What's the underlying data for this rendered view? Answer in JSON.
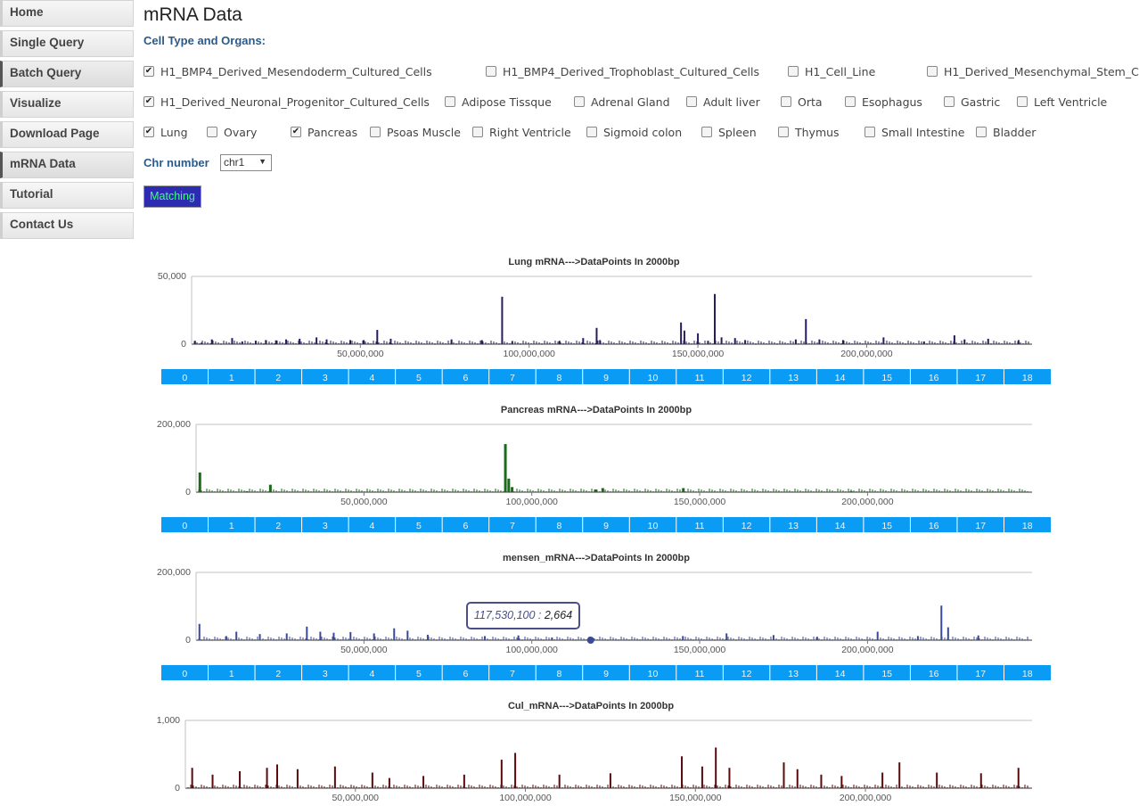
{
  "nav": {
    "items": [
      {
        "label": "Home",
        "active": false
      },
      {
        "label": "Single Query",
        "active": false
      },
      {
        "label": "Batch Query",
        "active": true
      },
      {
        "label": "Visualize",
        "active": false
      },
      {
        "label": "Download Page",
        "active": false
      },
      {
        "label": "mRNA Data",
        "active": true
      },
      {
        "label": "Tutorial",
        "active": false
      },
      {
        "label": "Contact Us",
        "active": false
      }
    ]
  },
  "page": {
    "title": "mRNA Data",
    "subtitle": "Cell Type and Organs:",
    "chr_label": "Chr number",
    "chr_value": "chr1",
    "match_label": "Matching"
  },
  "checkboxes": [
    {
      "label": "H1_BMP4_Derived_Mesendoderm_Cultured_Cells",
      "checked": true
    },
    {
      "label": "H1_BMP4_Derived_Trophoblast_Cultured_Cells",
      "checked": false
    },
    {
      "label": "H1_Cell_Line",
      "checked": false
    },
    {
      "label": "H1_Derived_Mesenchymal_Stem_C",
      "checked": false
    },
    {
      "label": "H1_Derived_Neuronal_Progenitor_Cultured_Cells",
      "checked": true
    },
    {
      "label": "Adipose Tissque",
      "checked": false
    },
    {
      "label": "Adrenal Gland",
      "checked": false
    },
    {
      "label": "Adult liver",
      "checked": false
    },
    {
      "label": "Orta",
      "checked": false
    },
    {
      "label": "Esophagus",
      "checked": false
    },
    {
      "label": "Gastric",
      "checked": false
    },
    {
      "label": "Left Ventricle",
      "checked": false
    },
    {
      "label": "Lung",
      "checked": true
    },
    {
      "label": "Ovary",
      "checked": false
    },
    {
      "label": "Pancreas",
      "checked": true
    },
    {
      "label": "Psoas Muscle",
      "checked": false
    },
    {
      "label": "Right Ventricle",
      "checked": false
    },
    {
      "label": "Sigmoid colon",
      "checked": false
    },
    {
      "label": "Spleen",
      "checked": false
    },
    {
      "label": "Thymus",
      "checked": false
    },
    {
      "label": "Small Intestine",
      "checked": false
    },
    {
      "label": "Bladder",
      "checked": false
    }
  ],
  "tooltip": {
    "x_label": "117,530,100 :",
    "y_label": "2,664"
  },
  "navigator_labels": [
    "0",
    "1",
    "2",
    "3",
    "4",
    "5",
    "6",
    "7",
    "8",
    "9",
    "10",
    "11",
    "12",
    "13",
    "14",
    "15",
    "16",
    "17",
    "18"
  ],
  "colors": {
    "lung": "#2a1a5e",
    "pancreas": "#1a6a1a",
    "mensen": "#3a4a9a",
    "cul": "#5a0a0a",
    "navigator": "#0a9cf5",
    "button_bg": "#2e2bb3",
    "button_text": "#3dff7a"
  },
  "chart_data": [
    {
      "type": "bar",
      "title": "Lung mRNA--->DataPoints In 2000bp",
      "ylim": [
        0,
        50000
      ],
      "y_ticks": [
        "50,000",
        "0"
      ],
      "x_ticks": [
        {
          "value": 50000000,
          "label": "50,000,000"
        },
        {
          "value": 100000000,
          "label": "100,000,000"
        },
        {
          "value": 150000000,
          "label": "150,000,000"
        },
        {
          "value": 200000000,
          "label": "200,000,000"
        }
      ],
      "xlim": [
        0,
        249000000
      ],
      "x": [
        1000000,
        3000000,
        6000000,
        12000000,
        15000000,
        19000000,
        22000000,
        25000000,
        28000000,
        32000000,
        37000000,
        40000000,
        47000000,
        51000000,
        55000000,
        59000000,
        77000000,
        86000000,
        92000000,
        95000000,
        109000000,
        116000000,
        120000000,
        121000000,
        145000000,
        146000000,
        150000000,
        153000000,
        155000000,
        157000000,
        161000000,
        164000000,
        179000000,
        182000000,
        186000000,
        193000000,
        205000000,
        217000000,
        226000000,
        229000000,
        236000000,
        245000000
      ],
      "y": [
        2500,
        1200,
        3500,
        4500,
        2000,
        2500,
        3000,
        2800,
        3500,
        4000,
        5000,
        3500,
        3000,
        3000,
        10500,
        4000,
        3500,
        3000,
        35000,
        2000,
        2500,
        4500,
        12000,
        3000,
        16000,
        10000,
        8000,
        2500,
        37000,
        5000,
        4500,
        3000,
        3500,
        18500,
        3500,
        3000,
        5000,
        2000,
        6500,
        3500,
        4000,
        3000
      ]
    },
    {
      "type": "area",
      "title": "Pancreas mRNA--->DataPoints In 2000bp",
      "ylim": [
        0,
        200000
      ],
      "y_ticks": [
        "200,000",
        "0"
      ],
      "x_ticks": [
        {
          "value": 50000000,
          "label": "50,000,000"
        },
        {
          "value": 100000000,
          "label": "100,000,000"
        },
        {
          "value": 150000000,
          "label": "150,000,000"
        },
        {
          "value": 200000000,
          "label": "200,000,000"
        }
      ],
      "xlim": [
        0,
        249000000
      ],
      "x": [
        1000000,
        15000000,
        22000000,
        92000000,
        93000000,
        94000000,
        119000000,
        121000000,
        145000000,
        195000000
      ],
      "y": [
        58000,
        3000,
        22000,
        142000,
        40000,
        15000,
        8000,
        12000,
        12000,
        3000
      ]
    },
    {
      "type": "bar",
      "title": "mensen_mRNA--->DataPoints In 2000bp",
      "ylim": [
        0,
        200000
      ],
      "y_ticks": [
        "200,000",
        "0"
      ],
      "x_ticks": [
        {
          "value": 50000000,
          "label": "50,000,000"
        },
        {
          "value": 100000000,
          "label": "100,000,000"
        },
        {
          "value": 150000000,
          "label": "150,000,000"
        },
        {
          "value": 200000000,
          "label": "200,000,000"
        }
      ],
      "xlim": [
        0,
        249000000
      ],
      "x": [
        1000000,
        9000000,
        12000000,
        19000000,
        27000000,
        33000000,
        37000000,
        41000000,
        46000000,
        53000000,
        59000000,
        63000000,
        69000000,
        86000000,
        96000000,
        106000000,
        117530100,
        145000000,
        158000000,
        172000000,
        185000000,
        203000000,
        215000000,
        222000000,
        224000000,
        233000000
      ],
      "y": [
        48000,
        12000,
        25000,
        18000,
        20000,
        40000,
        25000,
        22000,
        24000,
        20000,
        35000,
        28000,
        16000,
        12000,
        14000,
        8000,
        2664,
        12000,
        20000,
        15000,
        10000,
        25000,
        12000,
        102000,
        38000,
        14000
      ]
    },
    {
      "type": "bar",
      "title": "Cul_mRNA--->DataPoints In 2000bp",
      "ylim": [
        0,
        1000
      ],
      "y_ticks": [
        "1,000",
        "0"
      ],
      "x_ticks": [
        {
          "value": 50000000,
          "label": "50,000,000"
        },
        {
          "value": 100000000,
          "label": "100,000,000"
        },
        {
          "value": 150000000,
          "label": "150,000,000"
        },
        {
          "value": 200000000,
          "label": "200,000,000"
        }
      ],
      "xlim": [
        0,
        249000000
      ],
      "x": [
        2000000,
        8000000,
        16000000,
        24000000,
        27000000,
        33000000,
        44000000,
        55000000,
        60000000,
        70000000,
        82000000,
        93000000,
        97000000,
        110000000,
        125000000,
        146000000,
        152000000,
        156000000,
        160000000,
        176000000,
        180000000,
        187000000,
        193000000,
        205000000,
        210000000,
        221000000,
        234000000,
        245000000
      ],
      "y": [
        300,
        200,
        250,
        300,
        350,
        280,
        320,
        230,
        150,
        180,
        200,
        420,
        520,
        200,
        220,
        470,
        320,
        600,
        300,
        380,
        280,
        200,
        180,
        230,
        380,
        230,
        220,
        300
      ]
    }
  ]
}
